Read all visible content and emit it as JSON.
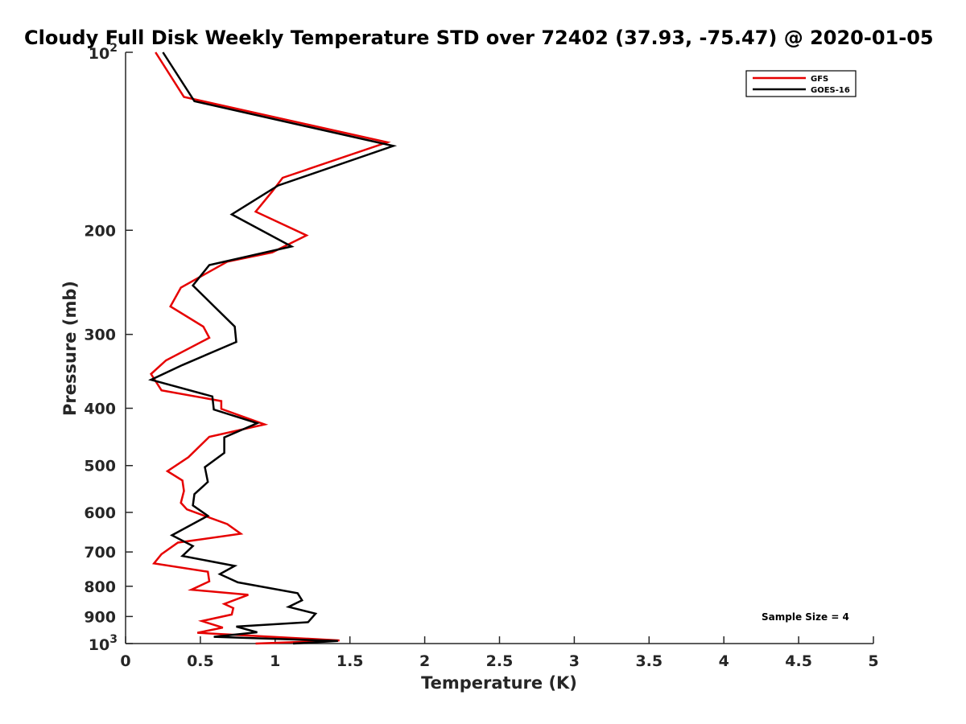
{
  "chart_data": {
    "type": "line",
    "title": "Cloudy Full Disk Weekly Temperature STD over 72402 (37.93, -75.47) @ 2020-01-05",
    "xlabel": "Temperature (K)",
    "ylabel": "Pressure (mb)",
    "xlim": [
      0,
      5
    ],
    "ylim": [
      100,
      1000
    ],
    "y_scale": "log",
    "y_reversed": true,
    "grid": false,
    "legend_position": "top-right",
    "annotation": "Sample Size = 4",
    "x_ticks": [
      {
        "value": 0,
        "label": "0"
      },
      {
        "value": 0.5,
        "label": "0.5"
      },
      {
        "value": 1,
        "label": "1"
      },
      {
        "value": 1.5,
        "label": "1.5"
      },
      {
        "value": 2,
        "label": "2"
      },
      {
        "value": 2.5,
        "label": "2.5"
      },
      {
        "value": 3,
        "label": "3"
      },
      {
        "value": 3.5,
        "label": "3.5"
      },
      {
        "value": 4,
        "label": "4"
      },
      {
        "value": 4.5,
        "label": "4.5"
      },
      {
        "value": 5,
        "label": "5"
      }
    ],
    "y_ticks": [
      {
        "value": 100,
        "base": "10",
        "exp": "2"
      },
      {
        "value": 200,
        "label": "200"
      },
      {
        "value": 300,
        "label": "300"
      },
      {
        "value": 400,
        "label": "400"
      },
      {
        "value": 500,
        "label": "500"
      },
      {
        "value": 600,
        "label": "600"
      },
      {
        "value": 700,
        "label": "700"
      },
      {
        "value": 800,
        "label": "800"
      },
      {
        "value": 900,
        "label": "900"
      },
      {
        "value": 1000,
        "base": "10",
        "exp": "3"
      }
    ],
    "series": [
      {
        "name": "GFS",
        "color": "#e60000",
        "points": [
          [
            0.2,
            100
          ],
          [
            0.39,
            119
          ],
          [
            1.75,
            142
          ],
          [
            1.05,
            163
          ],
          [
            0.98,
            172
          ],
          [
            0.87,
            186
          ],
          [
            1.21,
            204
          ],
          [
            0.98,
            218
          ],
          [
            0.68,
            226
          ],
          [
            0.37,
            250
          ],
          [
            0.3,
            269
          ],
          [
            0.52,
            291
          ],
          [
            0.56,
            304
          ],
          [
            0.27,
            332
          ],
          [
            0.17,
            350
          ],
          [
            0.24,
            373
          ],
          [
            0.64,
            389
          ],
          [
            0.64,
            401
          ],
          [
            0.93,
            426
          ],
          [
            0.56,
            447
          ],
          [
            0.42,
            484
          ],
          [
            0.28,
            511
          ],
          [
            0.38,
            530
          ],
          [
            0.39,
            552
          ],
          [
            0.37,
            578
          ],
          [
            0.41,
            593
          ],
          [
            0.68,
            628
          ],
          [
            0.77,
            652
          ],
          [
            0.35,
            675
          ],
          [
            0.24,
            706
          ],
          [
            0.19,
            732
          ],
          [
            0.55,
            756
          ],
          [
            0.56,
            785
          ],
          [
            0.44,
            811
          ],
          [
            0.82,
            827
          ],
          [
            0.66,
            857
          ],
          [
            0.72,
            871
          ],
          [
            0.71,
            893
          ],
          [
            0.51,
            916
          ],
          [
            0.65,
            940
          ],
          [
            0.48,
            959
          ],
          [
            1.43,
            988
          ],
          [
            0.87,
            1000
          ]
        ]
      },
      {
        "name": "GOES-16",
        "color": "#000000",
        "points": [
          [
            0.25,
            100
          ],
          [
            0.46,
            121
          ],
          [
            1.79,
            144
          ],
          [
            1.02,
            168
          ],
          [
            0.71,
            188
          ],
          [
            1.11,
            213
          ],
          [
            0.56,
            229
          ],
          [
            0.45,
            248
          ],
          [
            0.73,
            291
          ],
          [
            0.74,
            309
          ],
          [
            0.38,
            338
          ],
          [
            0.17,
            358
          ],
          [
            0.58,
            382
          ],
          [
            0.59,
            402
          ],
          [
            0.88,
            424
          ],
          [
            0.66,
            448
          ],
          [
            0.66,
            476
          ],
          [
            0.53,
            503
          ],
          [
            0.55,
            533
          ],
          [
            0.46,
            559
          ],
          [
            0.45,
            584
          ],
          [
            0.55,
            608
          ],
          [
            0.31,
            656
          ],
          [
            0.45,
            684
          ],
          [
            0.38,
            711
          ],
          [
            0.73,
            739
          ],
          [
            0.63,
            763
          ],
          [
            0.75,
            788
          ],
          [
            1.15,
            822
          ],
          [
            1.18,
            845
          ],
          [
            1.09,
            867
          ],
          [
            1.27,
            890
          ],
          [
            1.22,
            920
          ],
          [
            0.74,
            936
          ],
          [
            0.88,
            957
          ],
          [
            0.59,
            974
          ],
          [
            1.42,
            990
          ],
          [
            1.12,
            1000
          ]
        ]
      }
    ]
  }
}
